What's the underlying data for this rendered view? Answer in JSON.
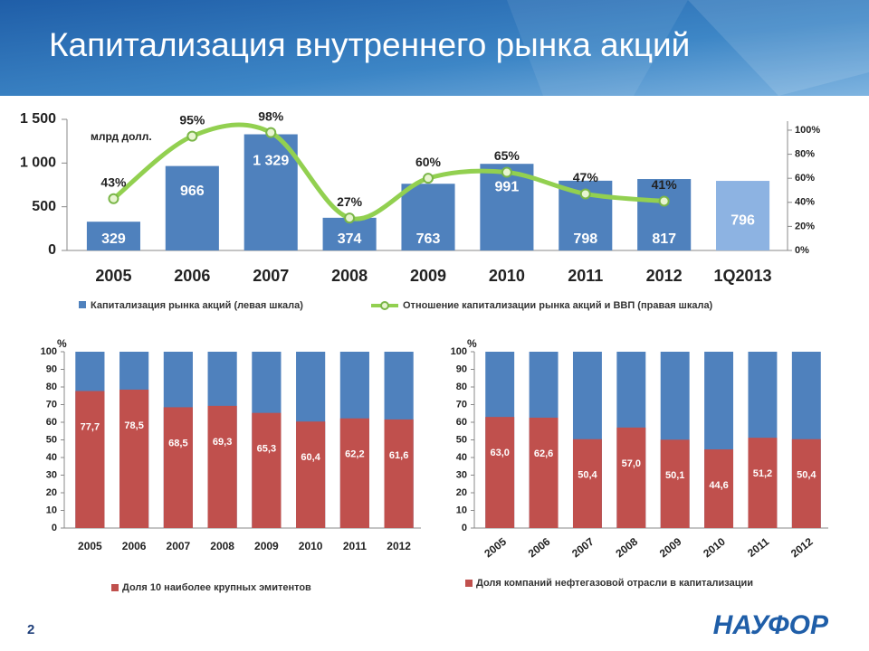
{
  "title": "Капитализация внутреннего рынка акций",
  "page_number": "2",
  "logo": "НАУФОР",
  "chart_data": [
    {
      "type": "bar_line",
      "unit_label": "млрд долл.",
      "categories": [
        "2005",
        "2006",
        "2007",
        "2008",
        "2009",
        "2010",
        "2011",
        "2012",
        "1Q2013"
      ],
      "series": [
        {
          "name": "Капитализация рынка акций (левая шкала)",
          "color": "#4f81bd",
          "colors": [
            "#4f81bd",
            "#4f81bd",
            "#4f81bd",
            "#4f81bd",
            "#4f81bd",
            "#4f81bd",
            "#4f81bd",
            "#4f81bd",
            "#8db3e2"
          ],
          "values": [
            329,
            966,
            1329,
            374,
            763,
            991,
            798,
            817,
            796
          ],
          "value_labels": [
            "329",
            "966",
            "1 329",
            "374",
            "763",
            "991",
            "798",
            "817",
            "796"
          ]
        },
        {
          "name": "Отношение капитализации рынка акций и ВВП (правая шкала)",
          "color": "#92d050",
          "axis": "y2",
          "values": [
            43,
            95,
            98,
            27,
            60,
            65,
            47,
            41,
            null
          ],
          "value_labels": [
            "43%",
            "95%",
            "98%",
            "27%",
            "60%",
            "65%",
            "47%",
            "41%",
            null
          ]
        }
      ],
      "ylim": [
        0,
        1500
      ],
      "yticks": [
        0,
        500,
        {
          "value": 1000,
          "label": "1 000"
        },
        {
          "value": 1500,
          "label": "1 500"
        }
      ],
      "y2lim": [
        0,
        109
      ],
      "y2ticks": [
        {
          "value": 0,
          "label": "0%"
        },
        {
          "value": 20,
          "label": "20%"
        },
        {
          "value": 40,
          "label": "40%"
        },
        {
          "value": 60,
          "label": "60%"
        },
        {
          "value": 80,
          "label": "80%"
        },
        {
          "value": 100,
          "label": "100%"
        }
      ]
    },
    {
      "type": "stacked_share",
      "unit_label": "%",
      "categories": [
        "2005",
        "2006",
        "2007",
        "2008",
        "2009",
        "2010",
        "2011",
        "2012"
      ],
      "series": [
        {
          "name": "Доля 10 наиболее крупных эмитентов",
          "color": "#c0504d",
          "values": [
            77.7,
            78.5,
            68.5,
            69.3,
            65.3,
            60.4,
            62.2,
            61.6
          ],
          "value_labels": [
            "77,7",
            "78,5",
            "68,5",
            "69,3",
            "65,3",
            "60,4",
            "62,2",
            "61,6"
          ]
        }
      ],
      "remainder_color": "#4f81bd",
      "ylim": [
        0,
        100
      ],
      "yticks": [
        0,
        10,
        20,
        30,
        40,
        50,
        60,
        70,
        80,
        90,
        100
      ],
      "rotated_labels": false
    },
    {
      "type": "stacked_share",
      "unit_label": "%",
      "categories": [
        "2005",
        "2006",
        "2007",
        "2008",
        "2009",
        "2010",
        "2011",
        "2012"
      ],
      "series": [
        {
          "name": "Доля компаний нефтегазовой отрасли в капитализации",
          "color": "#c0504d",
          "values": [
            63.0,
            62.6,
            50.4,
            57.0,
            50.1,
            44.6,
            51.2,
            50.4
          ],
          "value_labels": [
            "63,0",
            "62,6",
            "50,4",
            "57,0",
            "50,1",
            "44,6",
            "51,2",
            "50,4"
          ]
        }
      ],
      "remainder_color": "#4f81bd",
      "ylim": [
        0,
        100
      ],
      "yticks": [
        0,
        10,
        20,
        30,
        40,
        50,
        60,
        70,
        80,
        90,
        100
      ],
      "rotated_labels": true
    }
  ]
}
